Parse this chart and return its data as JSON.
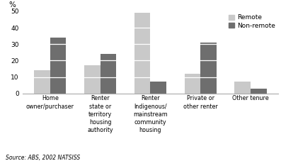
{
  "categories": [
    "Home\nowner/purchaser",
    "Renter\nstate or\nterritory\nhousing\nauthority",
    "Renter\nIndigenous/\nmainstream\ncommunity\nhousing",
    "Private or\nother renter",
    "Other tenure"
  ],
  "remote": [
    14,
    17,
    49,
    12,
    7
  ],
  "non_remote": [
    34,
    24,
    7,
    31,
    3
  ],
  "remote_color": "#c9c9c9",
  "non_remote_color": "#6e6e6e",
  "ylabel": "%",
  "ylim": [
    0,
    50
  ],
  "yticks": [
    0,
    10,
    20,
    30,
    40,
    50
  ],
  "legend_labels": [
    "Remote",
    "Non-remote"
  ],
  "source_text": "Source: ABS, 2002 NATSISS",
  "bar_width": 0.32
}
